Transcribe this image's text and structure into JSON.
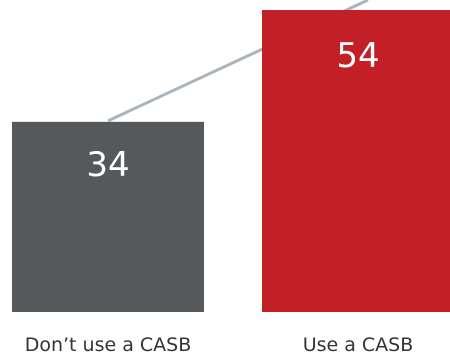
{
  "chart_data": {
    "type": "bar",
    "categories": [
      "Don’t use a CASB",
      "Use a CASB"
    ],
    "values": [
      34,
      54
    ],
    "value_labels": [
      "34",
      "54"
    ],
    "colors": [
      "#55595c",
      "#c21f26"
    ],
    "trend_line_color": "#aab4ba",
    "ylim": [
      0,
      54
    ],
    "grid": false,
    "legend": "none"
  }
}
